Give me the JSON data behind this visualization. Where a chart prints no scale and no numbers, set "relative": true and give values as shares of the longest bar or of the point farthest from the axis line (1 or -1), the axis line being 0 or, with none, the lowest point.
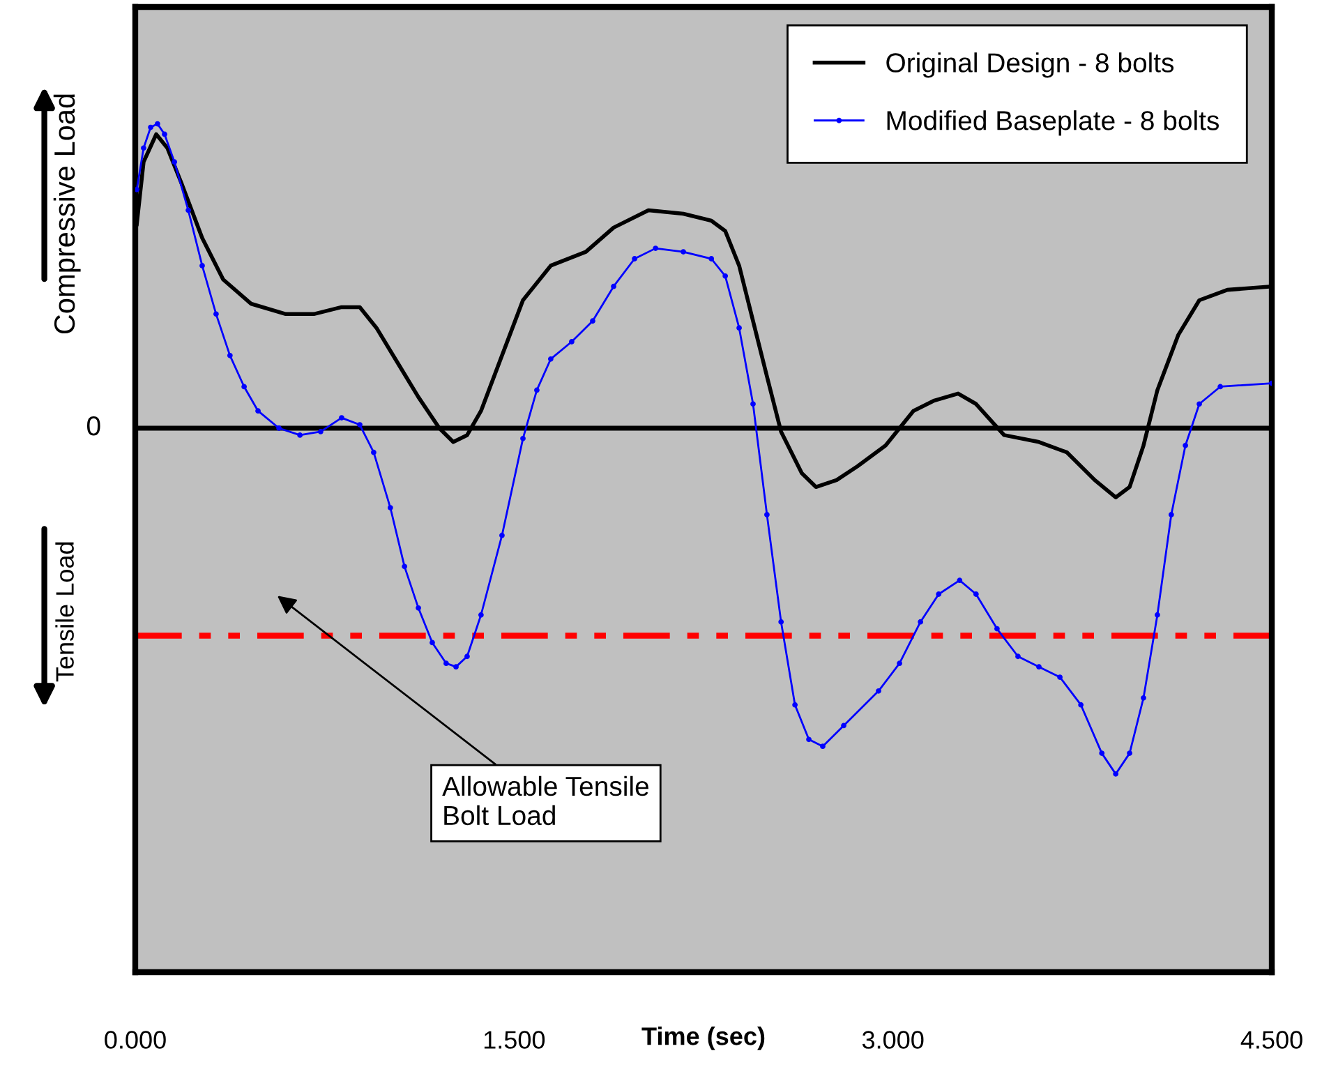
{
  "chart_data": {
    "type": "line",
    "relative": true,
    "xlabel": "Time (sec)",
    "xlim": [
      0,
      4.5
    ],
    "xticks": [
      {
        "value": 0,
        "label": "0.000"
      },
      {
        "value": 1.5,
        "label": "1.500"
      },
      {
        "value": 3,
        "label": "3.000"
      },
      {
        "value": 4.5,
        "label": "4.500"
      }
    ],
    "legend": "top right",
    "grid": false,
    "series": [
      {
        "name": "Original Design - 8 bolts",
        "color": "#000000",
        "marker": "none",
        "x": [
          0.006,
          0.033,
          0.083,
          0.127,
          0.182,
          0.265,
          0.348,
          0.458,
          0.596,
          0.707,
          0.817,
          0.889,
          0.955,
          1.038,
          1.121,
          1.204,
          1.259,
          1.314,
          1.369,
          1.452,
          1.535,
          1.645,
          1.784,
          1.894,
          2.032,
          2.17,
          2.281,
          2.336,
          2.391,
          2.446,
          2.501,
          2.557,
          2.639,
          2.695,
          2.777,
          2.86,
          2.971,
          3.081,
          3.164,
          3.258,
          3.329,
          3.44,
          3.578,
          3.689,
          3.799,
          3.882,
          3.937,
          3.992,
          4.047,
          4.13,
          4.213,
          4.324,
          4.5
        ],
        "values": [
          0.59,
          0.77,
          0.85,
          0.81,
          0.71,
          0.55,
          0.43,
          0.36,
          0.33,
          0.33,
          0.35,
          0.35,
          0.29,
          0.19,
          0.09,
          0,
          -0.04,
          -0.02,
          0.05,
          0.21,
          0.37,
          0.47,
          0.51,
          0.58,
          0.63,
          0.62,
          0.6,
          0.57,
          0.47,
          0.31,
          0.15,
          -0.01,
          -0.13,
          -0.17,
          -0.15,
          -0.11,
          -0.05,
          0.05,
          0.08,
          0.1,
          0.07,
          -0.02,
          -0.04,
          -0.07,
          -0.15,
          -0.2,
          -0.17,
          -0.05,
          0.11,
          0.27,
          0.37,
          0.4,
          0.41
        ]
      },
      {
        "name": "Modified Baseplate - 8 bolts",
        "color": "#0000ff",
        "marker": "circle",
        "x": [
          0.006,
          0.033,
          0.061,
          0.088,
          0.116,
          0.155,
          0.21,
          0.265,
          0.32,
          0.375,
          0.431,
          0.486,
          0.569,
          0.652,
          0.734,
          0.817,
          0.889,
          0.944,
          1.01,
          1.066,
          1.121,
          1.176,
          1.231,
          1.27,
          1.314,
          1.369,
          1.452,
          1.535,
          1.59,
          1.645,
          1.728,
          1.811,
          1.894,
          1.977,
          2.06,
          2.17,
          2.281,
          2.336,
          2.391,
          2.446,
          2.501,
          2.557,
          2.612,
          2.667,
          2.722,
          2.805,
          2.943,
          3.026,
          3.109,
          3.181,
          3.264,
          3.329,
          3.412,
          3.495,
          3.578,
          3.661,
          3.744,
          3.827,
          3.882,
          3.937,
          3.992,
          4.047,
          4.102,
          4.158,
          4.213,
          4.296,
          4.5
        ],
        "values": [
          0.69,
          0.81,
          0.87,
          0.88,
          0.85,
          0.77,
          0.63,
          0.47,
          0.33,
          0.21,
          0.12,
          0.05,
          0,
          -0.02,
          -0.01,
          0.03,
          0.01,
          -0.07,
          -0.23,
          -0.4,
          -0.52,
          -0.62,
          -0.68,
          -0.69,
          -0.66,
          -0.54,
          -0.31,
          -0.03,
          0.11,
          0.2,
          0.25,
          0.31,
          0.41,
          0.49,
          0.52,
          0.51,
          0.49,
          0.44,
          0.29,
          0.07,
          -0.25,
          -0.56,
          -0.8,
          -0.9,
          -0.92,
          -0.86,
          -0.76,
          -0.68,
          -0.56,
          -0.48,
          -0.44,
          -0.48,
          -0.58,
          -0.66,
          -0.69,
          -0.72,
          -0.8,
          -0.94,
          -1,
          -0.94,
          -0.78,
          -0.54,
          -0.25,
          -0.05,
          0.07,
          0.12,
          0.13
        ]
      }
    ],
    "ref_lines": [
      {
        "axis": "y",
        "value": -0.6,
        "color": "#ff0000",
        "line_style": "dashdot"
      }
    ],
    "annotations": [
      "0",
      "Compressive Load",
      "Tensile Load",
      "Allowable Tensile\nBolt Load"
    ]
  }
}
